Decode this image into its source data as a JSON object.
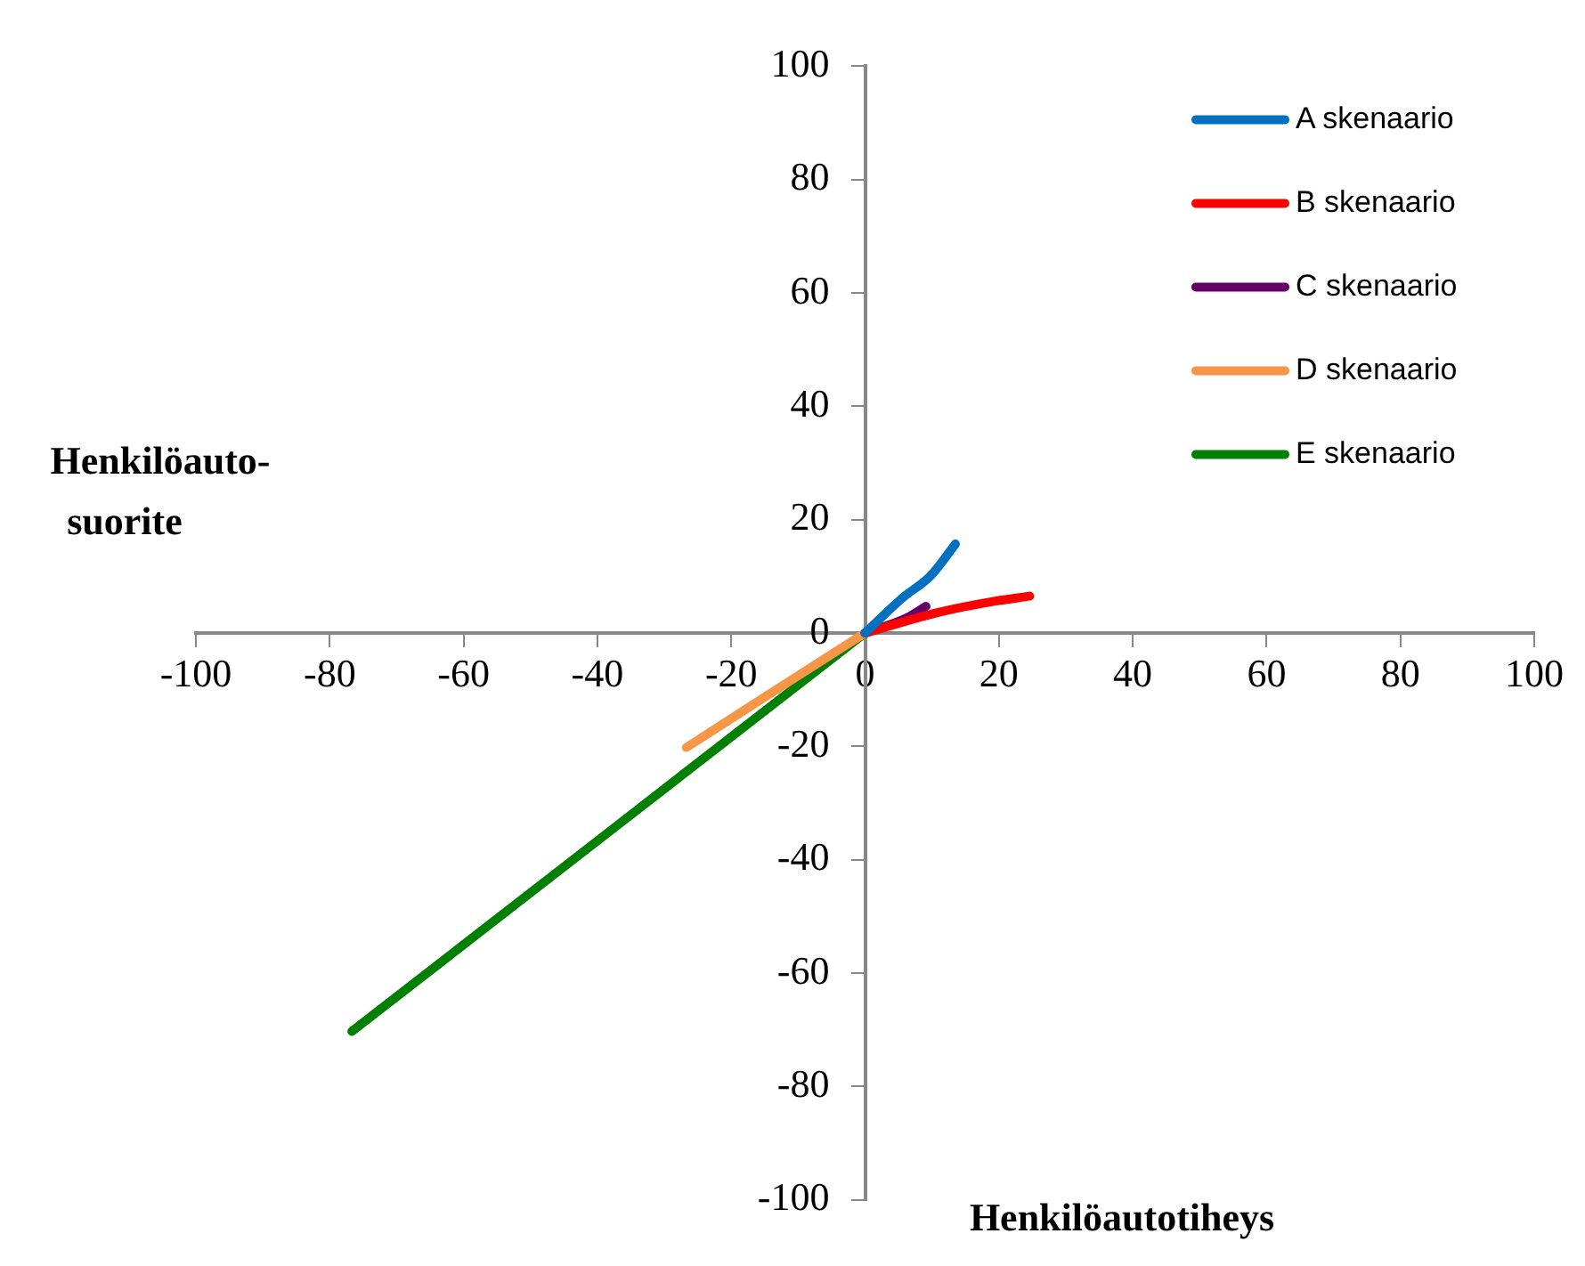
{
  "chart_data": {
    "type": "line",
    "xlabel": "Henkilöautotiheys",
    "ylabel": "Henkilöauto-\nsuorite",
    "xlim": [
      -100,
      100
    ],
    "xticks": [
      -100,
      -80,
      -60,
      -40,
      -20,
      0,
      20,
      40,
      60,
      80,
      100
    ],
    "ylim": [
      -100,
      100
    ],
    "yticks": [
      -100,
      -80,
      -60,
      -40,
      -20,
      0,
      20,
      40,
      60,
      80,
      100
    ],
    "grid": false,
    "legend": "top right",
    "marker": "none",
    "line_style": "solid",
    "series": [
      {
        "name": "A skenaario",
        "color": "#0070c0",
        "x": [
          0,
          5.6,
          9.8,
          13.5
        ],
        "values": [
          0,
          6.2,
          10.1,
          15.7
        ]
      },
      {
        "name": "B skenaario",
        "color": "#ff0000",
        "x": [
          0,
          10.8,
          19.3,
          24.6
        ],
        "values": [
          0,
          3.6,
          5.6,
          6.5
        ]
      },
      {
        "name": "C skenaario",
        "color": "#660066",
        "x": [
          0,
          6.3,
          9.1
        ],
        "values": [
          0,
          2.7,
          4.7
        ]
      },
      {
        "name": "D skenaario",
        "color": "#f79646",
        "x": [
          0,
          -13.4,
          -26.7
        ],
        "values": [
          0,
          -10.1,
          -20.2
        ]
      },
      {
        "name": "E skenaario",
        "color": "#008000",
        "x": [
          0,
          -38.4,
          -76.7
        ],
        "values": [
          0,
          -35.2,
          -70.3
        ]
      }
    ]
  }
}
